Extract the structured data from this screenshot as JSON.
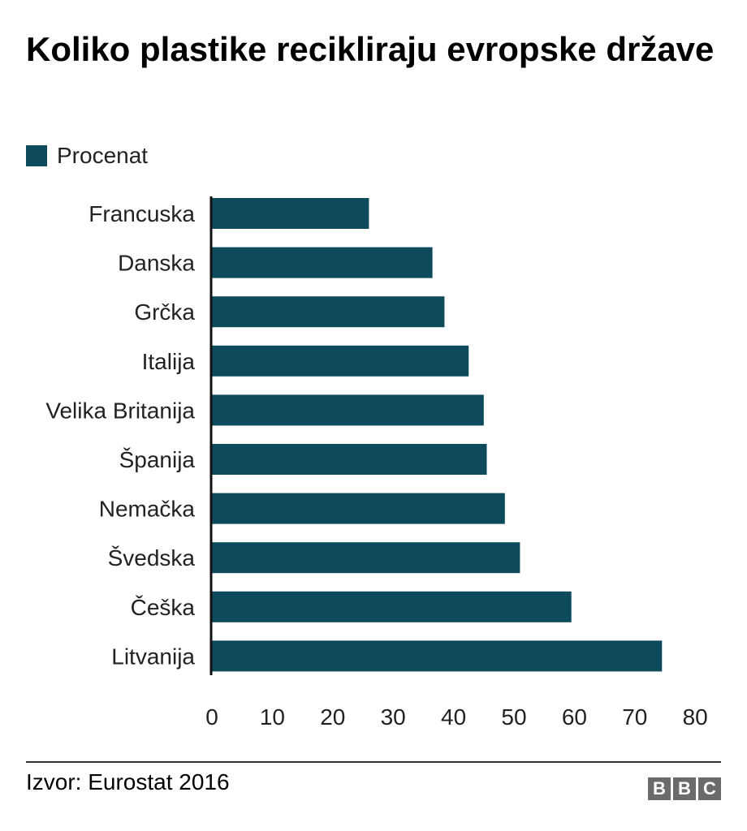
{
  "title": "Koliko plastike recikliraju evropske države",
  "source": "Izvor: Eurostat 2016",
  "logo_text": "BBC",
  "bar_color": "#0d4a5c",
  "chart_data": {
    "type": "bar",
    "orientation": "horizontal",
    "title": "Koliko plastike recikliraju evropske države",
    "categories": [
      "Francuska",
      "Danska",
      "Grčka",
      "Italija",
      "Velika Britanija",
      "Španija",
      "Nemačka",
      "Švedska",
      "Češka",
      "Litvanija"
    ],
    "series": [
      {
        "name": "Procenat",
        "values": [
          26,
          36.5,
          38.5,
          42.5,
          45,
          45.5,
          48.5,
          51,
          59.5,
          74.5
        ]
      }
    ],
    "xticks": [
      "0",
      "10",
      "20",
      "30",
      "40",
      "50",
      "60",
      "70",
      "80"
    ],
    "xlim": [
      0,
      80
    ],
    "legend": "top-left",
    "grid": false
  }
}
